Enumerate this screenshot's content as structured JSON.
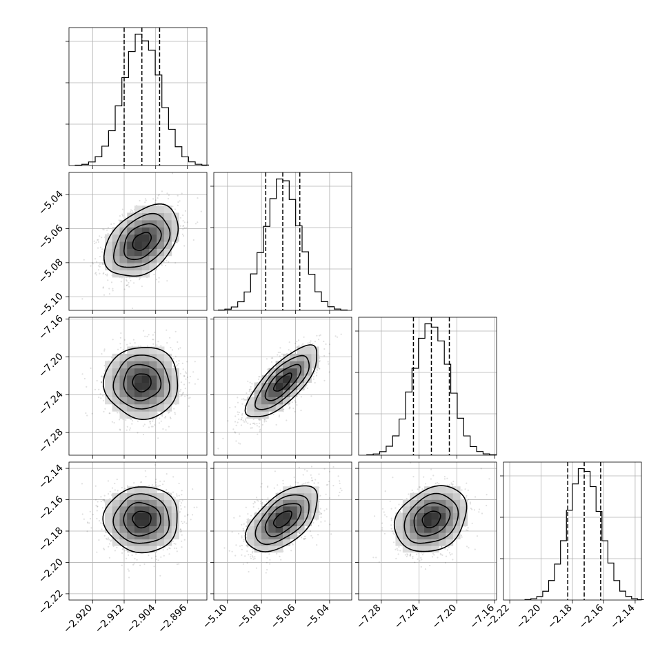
{
  "chart_data": {
    "type": "corner",
    "grid": true,
    "colors": {
      "line": "#000000",
      "grid": "#b0b0b0",
      "scatter": "#9a9a9a",
      "background": "#ffffff"
    },
    "parameters": [
      {
        "range": [
          -2.926,
          -2.891
        ],
        "ticks": [
          {
            "value": -2.92,
            "label": "−2.920"
          },
          {
            "value": -2.912,
            "label": "−2.912"
          },
          {
            "value": -2.904,
            "label": "−2.904"
          },
          {
            "value": -2.896,
            "label": "−2.896"
          }
        ],
        "median": -2.9075,
        "sigma": 0.0047,
        "quantiles": [
          -2.912,
          -2.9075,
          -2.903
        ]
      },
      {
        "range": [
          -5.108,
          -5.027
        ],
        "ticks": [
          {
            "value": -5.1,
            "label": "−5.10"
          },
          {
            "value": -5.08,
            "label": "−5.08"
          },
          {
            "value": -5.06,
            "label": "−5.06"
          },
          {
            "value": -5.04,
            "label": "−5.04"
          }
        ],
        "median": -5.0675,
        "sigma": 0.0105,
        "quantiles": [
          -5.0775,
          -5.0675,
          -5.0575
        ]
      },
      {
        "range": [
          -7.304,
          -7.158
        ],
        "ticks": [
          {
            "value": -7.28,
            "label": "−7.28"
          },
          {
            "value": -7.24,
            "label": "−7.24"
          },
          {
            "value": -7.2,
            "label": "−7.20"
          },
          {
            "value": -7.16,
            "label": "−7.16"
          }
        ],
        "median": -7.227,
        "sigma": 0.019,
        "quantiles": [
          -7.246,
          -7.227,
          -7.208
        ]
      },
      {
        "range": [
          -2.224,
          -2.136
        ],
        "ticks": [
          {
            "value": -2.22,
            "label": "−2.22"
          },
          {
            "value": -2.2,
            "label": "−2.20"
          },
          {
            "value": -2.18,
            "label": "−2.18"
          },
          {
            "value": -2.16,
            "label": "−2.16"
          },
          {
            "value": -2.14,
            "label": "−2.14"
          }
        ],
        "median": -2.1725,
        "sigma": 0.0105,
        "quantiles": [
          -2.183,
          -2.1725,
          -2.162
        ]
      }
    ],
    "correlations": [
      [
        1.0,
        0.4,
        0.0,
        0.0
      ],
      [
        0.4,
        1.0,
        0.75,
        0.55
      ],
      [
        0.0,
        0.75,
        1.0,
        0.25
      ],
      [
        0.0,
        0.55,
        0.25,
        1.0
      ]
    ],
    "histogram_bins": 20,
    "contour_levels_sigma": [
      0.5,
      1.0,
      1.5,
      2.0
    ],
    "scatter_points_per_panel": 1400
  }
}
